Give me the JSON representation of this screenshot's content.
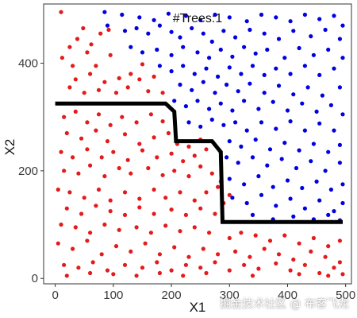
{
  "chart_data": {
    "type": "scatter",
    "title": "#Trees:1",
    "xlabel": "X1",
    "ylabel": "X2",
    "xlim": [
      -20,
      510
    ],
    "ylim": [
      -10,
      510
    ],
    "xticks": [
      0,
      100,
      200,
      300,
      400,
      500
    ],
    "yticks": [
      0,
      200,
      400
    ],
    "grid": false,
    "legend": "none",
    "colors": {
      "class_red": "#e41a1c",
      "class_blue": "#0000e0",
      "boundary": "#000000"
    },
    "series": [
      {
        "color": "#e41a1c",
        "points": [
          [
            10,
            495
          ],
          [
            12,
            410
          ],
          [
            25,
            430
          ],
          [
            38,
            445
          ],
          [
            48,
            465
          ],
          [
            62,
            435
          ],
          [
            78,
            455
          ],
          [
            92,
            462
          ],
          [
            30,
            395
          ],
          [
            55,
            420
          ],
          [
            70,
            395
          ],
          [
            95,
            415
          ],
          [
            35,
            370
          ],
          [
            60,
            380
          ],
          [
            85,
            365
          ],
          [
            110,
            372
          ],
          [
            130,
            380
          ],
          [
            145,
            370
          ],
          [
            25,
            355
          ],
          [
            50,
            345
          ],
          [
            75,
            350
          ],
          [
            105,
            345
          ],
          [
            125,
            355
          ],
          [
            160,
            348
          ],
          [
            185,
            345
          ],
          [
            150,
            398
          ],
          [
            170,
            375
          ],
          [
            15,
            300
          ],
          [
            35,
            310
          ],
          [
            55,
            290
          ],
          [
            75,
            305
          ],
          [
            95,
            285
          ],
          [
            115,
            300
          ],
          [
            140,
            290
          ],
          [
            165,
            305
          ],
          [
            185,
            292
          ],
          [
            20,
            270
          ],
          [
            45,
            260
          ],
          [
            70,
            275
          ],
          [
            90,
            255
          ],
          [
            120,
            268
          ],
          [
            145,
            250
          ],
          [
            170,
            262
          ],
          [
            195,
            270
          ],
          [
            210,
            250
          ],
          [
            230,
            245
          ],
          [
            250,
            258
          ],
          [
            10,
            235
          ],
          [
            30,
            225
          ],
          [
            55,
            240
          ],
          [
            80,
            225
          ],
          [
            100,
            235
          ],
          [
            125,
            220
          ],
          [
            150,
            238
          ],
          [
            175,
            225
          ],
          [
            200,
            232
          ],
          [
            220,
            218
          ],
          [
            240,
            228
          ],
          [
            260,
            240
          ],
          [
            15,
            200
          ],
          [
            40,
            195
          ],
          [
            60,
            210
          ],
          [
            85,
            190
          ],
          [
            110,
            205
          ],
          [
            130,
            195
          ],
          [
            160,
            205
          ],
          [
            185,
            192
          ],
          [
            205,
            200
          ],
          [
            230,
            190
          ],
          [
            250,
            208
          ],
          [
            270,
            195
          ],
          [
            285,
            180
          ],
          [
            5,
            165
          ],
          [
            25,
            160
          ],
          [
            50,
            150
          ],
          [
            75,
            165
          ],
          [
            95,
            145
          ],
          [
            120,
            160
          ],
          [
            145,
            148
          ],
          [
            170,
            165
          ],
          [
            190,
            150
          ],
          [
            215,
            160
          ],
          [
            240,
            145
          ],
          [
            260,
            160
          ],
          [
            280,
            170
          ],
          [
            300,
            155
          ],
          [
            20,
            130
          ],
          [
            45,
            120
          ],
          [
            70,
            135
          ],
          [
            95,
            125
          ],
          [
            120,
            118
          ],
          [
            145,
            132
          ],
          [
            170,
            120
          ],
          [
            200,
            128
          ],
          [
            225,
            118
          ],
          [
            250,
            130
          ],
          [
            275,
            120
          ],
          [
            290,
            140
          ],
          [
            10,
            100
          ],
          [
            35,
            95
          ],
          [
            60,
            85
          ],
          [
            85,
            100
          ],
          [
            110,
            90
          ],
          [
            140,
            95
          ],
          [
            165,
            85
          ],
          [
            190,
            98
          ],
          [
            215,
            88
          ],
          [
            240,
            95
          ],
          [
            265,
            85
          ],
          [
            300,
            75
          ],
          [
            320,
            85
          ],
          [
            345,
            80
          ],
          [
            370,
            70
          ],
          [
            395,
            80
          ],
          [
            420,
            65
          ],
          [
            445,
            75
          ],
          [
            470,
            60
          ],
          [
            490,
            70
          ],
          [
            5,
            65
          ],
          [
            30,
            55
          ],
          [
            55,
            70
          ],
          [
            80,
            45
          ],
          [
            105,
            60
          ],
          [
            130,
            50
          ],
          [
            155,
            65
          ],
          [
            180,
            45
          ],
          [
            205,
            58
          ],
          [
            230,
            40
          ],
          [
            255,
            55
          ],
          [
            280,
            45
          ],
          [
            310,
            50
          ],
          [
            335,
            40
          ],
          [
            360,
            55
          ],
          [
            385,
            45
          ],
          [
            410,
            35
          ],
          [
            440,
            50
          ],
          [
            465,
            40
          ],
          [
            490,
            30
          ],
          [
            15,
            25
          ],
          [
            40,
            20
          ],
          [
            65,
            30
          ],
          [
            90,
            15
          ],
          [
            120,
            25
          ],
          [
            150,
            20
          ],
          [
            175,
            30
          ],
          [
            200,
            15
          ],
          [
            225,
            25
          ],
          [
            250,
            20
          ],
          [
            275,
            30
          ],
          [
            300,
            15
          ],
          [
            325,
            25
          ],
          [
            350,
            18
          ],
          [
            380,
            28
          ],
          [
            405,
            15
          ],
          [
            430,
            25
          ],
          [
            455,
            10
          ],
          [
            480,
            20
          ],
          [
            495,
            8
          ],
          [
            20,
            5
          ],
          [
            60,
            10
          ],
          [
            100,
            8
          ],
          [
            140,
            5
          ],
          [
            180,
            10
          ],
          [
            220,
            5
          ],
          [
            260,
            10
          ],
          [
            340,
            5
          ],
          [
            420,
            8
          ],
          [
            470,
            5
          ]
        ]
      },
      {
        "color": "#0000e0",
        "points": [
          [
            85,
            495
          ],
          [
            115,
            490
          ],
          [
            145,
            485
          ],
          [
            170,
            480
          ],
          [
            195,
            492
          ],
          [
            225,
            488
          ],
          [
            250,
            480
          ],
          [
            275,
            490
          ],
          [
            300,
            485
          ],
          [
            330,
            478
          ],
          [
            355,
            490
          ],
          [
            380,
            485
          ],
          [
            405,
            478
          ],
          [
            430,
            490
          ],
          [
            455,
            482
          ],
          [
            480,
            488
          ],
          [
            495,
            470
          ],
          [
            90,
            470
          ],
          [
            120,
            460
          ],
          [
            140,
            465
          ],
          [
            160,
            455
          ],
          [
            180,
            470
          ],
          [
            200,
            458
          ],
          [
            215,
            448
          ],
          [
            235,
            465
          ],
          [
            255,
            455
          ],
          [
            270,
            440
          ],
          [
            290,
            460
          ],
          [
            310,
            448
          ],
          [
            335,
            462
          ],
          [
            360,
            455
          ],
          [
            385,
            445
          ],
          [
            410,
            460
          ],
          [
            440,
            450
          ],
          [
            465,
            462
          ],
          [
            490,
            445
          ],
          [
            130,
            430
          ],
          [
            150,
            420
          ],
          [
            175,
            425
          ],
          [
            200,
            415
          ],
          [
            220,
            430
          ],
          [
            245,
            420
          ],
          [
            265,
            410
          ],
          [
            285,
            425
          ],
          [
            305,
            412
          ],
          [
            325,
            430
          ],
          [
            345,
            418
          ],
          [
            365,
            425
          ],
          [
            395,
            410
          ],
          [
            420,
            428
          ],
          [
            445,
            415
          ],
          [
            470,
            425
          ],
          [
            495,
            410
          ],
          [
            180,
            395
          ],
          [
            200,
            385
          ],
          [
            220,
            395
          ],
          [
            240,
            380
          ],
          [
            260,
            390
          ],
          [
            280,
            375
          ],
          [
            300,
            392
          ],
          [
            320,
            380
          ],
          [
            340,
            395
          ],
          [
            360,
            378
          ],
          [
            380,
            390
          ],
          [
            405,
            380
          ],
          [
            430,
            395
          ],
          [
            455,
            378
          ],
          [
            480,
            390
          ],
          [
            215,
            360
          ],
          [
            235,
            350
          ],
          [
            255,
            365
          ],
          [
            275,
            345
          ],
          [
            295,
            360
          ],
          [
            315,
            348
          ],
          [
            335,
            362
          ],
          [
            360,
            345
          ],
          [
            385,
            358
          ],
          [
            410,
            342
          ],
          [
            435,
            355
          ],
          [
            460,
            340
          ],
          [
            490,
            355
          ],
          [
            205,
            330
          ],
          [
            225,
            320
          ],
          [
            245,
            330
          ],
          [
            265,
            315
          ],
          [
            285,
            325
          ],
          [
            305,
            312
          ],
          [
            325,
            330
          ],
          [
            350,
            315
          ],
          [
            375,
            328
          ],
          [
            400,
            312
          ],
          [
            425,
            325
          ],
          [
            450,
            310
          ],
          [
            475,
            322
          ],
          [
            495,
            305
          ],
          [
            230,
            290
          ],
          [
            250,
            282
          ],
          [
            270,
            295
          ],
          [
            290,
            285
          ],
          [
            310,
            290
          ],
          [
            330,
            275
          ],
          [
            355,
            290
          ],
          [
            380,
            278
          ],
          [
            405,
            292
          ],
          [
            430,
            275
          ],
          [
            455,
            288
          ],
          [
            480,
            275
          ],
          [
            300,
            255
          ],
          [
            320,
            245
          ],
          [
            345,
            258
          ],
          [
            370,
            240
          ],
          [
            395,
            252
          ],
          [
            420,
            238
          ],
          [
            445,
            250
          ],
          [
            470,
            235
          ],
          [
            490,
            248
          ],
          [
            295,
            225
          ],
          [
            315,
            215
          ],
          [
            340,
            225
          ],
          [
            365,
            210
          ],
          [
            390,
            222
          ],
          [
            415,
            205
          ],
          [
            440,
            218
          ],
          [
            465,
            200
          ],
          [
            490,
            215
          ],
          [
            300,
            185
          ],
          [
            325,
            175
          ],
          [
            350,
            190
          ],
          [
            375,
            170
          ],
          [
            400,
            182
          ],
          [
            425,
            168
          ],
          [
            450,
            180
          ],
          [
            475,
            165
          ],
          [
            495,
            175
          ],
          [
            305,
            150
          ],
          [
            330,
            140
          ],
          [
            355,
            155
          ],
          [
            380,
            135
          ],
          [
            405,
            148
          ],
          [
            430,
            130
          ],
          [
            455,
            145
          ],
          [
            480,
            125
          ],
          [
            495,
            140
          ],
          [
            340,
            118
          ],
          [
            375,
            110
          ],
          [
            410,
            115
          ],
          [
            445,
            110
          ],
          [
            470,
            118
          ],
          [
            490,
            108
          ]
        ]
      }
    ],
    "boundary": [
      [
        0,
        325
      ],
      [
        190,
        325
      ],
      [
        205,
        310
      ],
      [
        208,
        255
      ],
      [
        270,
        255
      ],
      [
        285,
        235
      ],
      [
        288,
        105
      ],
      [
        495,
        105
      ]
    ]
  },
  "watermark": "掘金技术社区 @ 布客飞龙"
}
